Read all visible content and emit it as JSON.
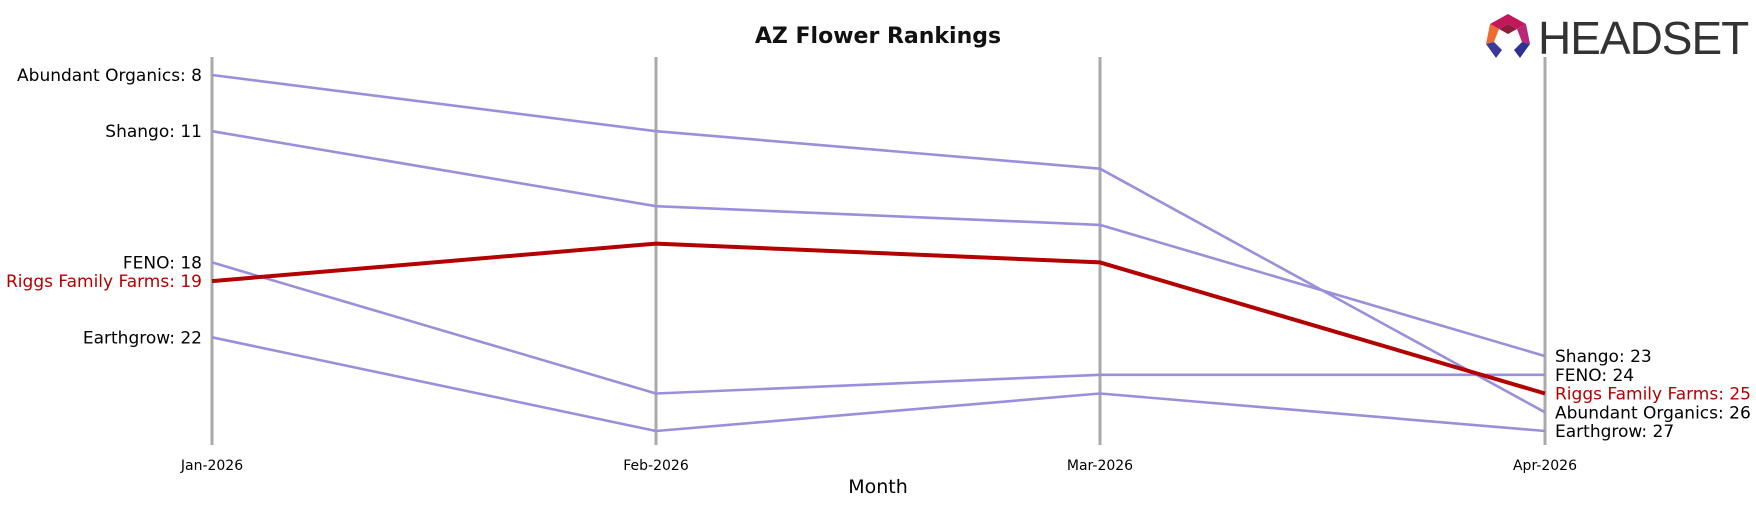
{
  "chart_data": {
    "type": "line",
    "title": "AZ Flower Rankings",
    "xlabel": "Month",
    "ylabel": "",
    "x": [
      "Jan-2026",
      "Feb-2026",
      "Mar-2026",
      "Apr-2026"
    ],
    "y_inverted": true,
    "ylim": [
      7,
      28
    ],
    "grid": false,
    "vertical_lines_at_categories": true,
    "series": [
      {
        "name": "Abundant Organics",
        "values": [
          8,
          11,
          13,
          26
        ],
        "highlight": false
      },
      {
        "name": "Shango",
        "values": [
          11,
          15,
          16,
          23
        ],
        "highlight": false
      },
      {
        "name": "FENO",
        "values": [
          18,
          25,
          24,
          24
        ],
        "highlight": false
      },
      {
        "name": "Riggs Family Farms",
        "values": [
          19,
          17,
          18,
          25
        ],
        "highlight": true
      },
      {
        "name": "Earthgrow",
        "values": [
          22,
          27,
          25,
          27
        ],
        "highlight": false
      }
    ],
    "start_labels": [
      {
        "series": "Abundant Organics",
        "text": "Abundant Organics: 8"
      },
      {
        "series": "Shango",
        "text": "Shango: 11"
      },
      {
        "series": "FENO",
        "text": "FENO: 18"
      },
      {
        "series": "Riggs Family Farms",
        "text": "Riggs Family Farms: 19"
      },
      {
        "series": "Earthgrow",
        "text": "Earthgrow: 22"
      }
    ],
    "end_labels": [
      {
        "series": "Shango",
        "text": "Shango: 23"
      },
      {
        "series": "FENO",
        "text": "FENO: 24"
      },
      {
        "series": "Riggs Family Farms",
        "text": "Riggs Family Farms: 25"
      },
      {
        "series": "Abundant Organics",
        "text": "Abundant Organics: 26"
      },
      {
        "series": "Earthgrow",
        "text": "Earthgrow: 27"
      }
    ],
    "colors": {
      "series_line": "#9b8fdc",
      "highlight_line": "#b30000",
      "highlight_text": "#b30000",
      "normal_text": "#000000",
      "vertical_line": "#aaaaaa"
    }
  },
  "logo": {
    "text": "HEADSET",
    "icon": "headset-hexagon-logo-icon"
  }
}
